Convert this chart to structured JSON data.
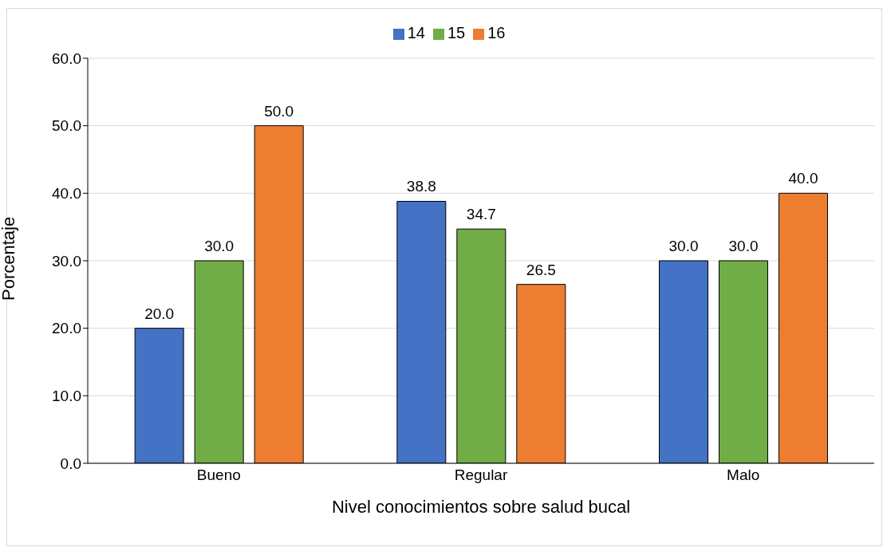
{
  "chart_data": {
    "type": "bar",
    "xlabel": "Nivel conocimientos sobre salud bucal",
    "ylabel": "Porcentaje",
    "categories": [
      "Bueno",
      "Regular",
      "Malo"
    ],
    "series": [
      {
        "name": "14",
        "color": "#4472c4",
        "values": [
          20.0,
          38.8,
          30.0
        ],
        "value_labels": [
          "20.0",
          "38.8",
          "30.0"
        ]
      },
      {
        "name": "15",
        "color": "#70ad47",
        "values": [
          30.0,
          34.7,
          30.0
        ],
        "value_labels": [
          "30.0",
          "34.7",
          "30.0"
        ]
      },
      {
        "name": "16",
        "color": "#ed7d31",
        "values": [
          50.0,
          26.5,
          40.0
        ],
        "value_labels": [
          "50.0",
          "26.5",
          "40.0"
        ]
      }
    ],
    "ylim": [
      0,
      60
    ],
    "yticks": [
      {
        "value": 0,
        "label": "0.0"
      },
      {
        "value": 10,
        "label": "10.0"
      },
      {
        "value": 20,
        "label": "20.0"
      },
      {
        "value": 30,
        "label": "30.0"
      },
      {
        "value": 40,
        "label": "40.0"
      },
      {
        "value": 50,
        "label": "50.0"
      },
      {
        "value": 60,
        "label": "60.0"
      }
    ],
    "grid": "y",
    "legend": "top"
  }
}
